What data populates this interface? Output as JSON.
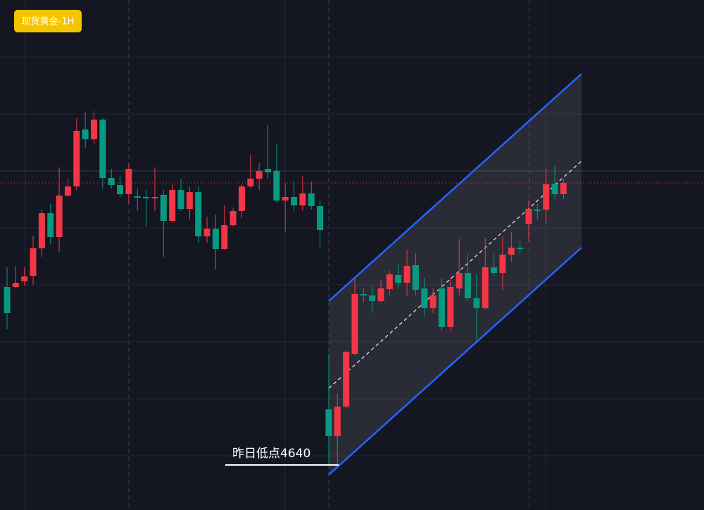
{
  "chart_data": {
    "type": "candlestick",
    "title": "现货黄金-1H",
    "annotation": "昨日低点4640",
    "up_color": "#f23645",
    "down_color": "#089981",
    "ylim": [
      4624,
      4805.25
    ],
    "open": [
      4703.25,
      4703.25,
      4705.25,
      4707.25,
      4717,
      4729.5,
      4721,
      4735.75,
      4739,
      4759.25,
      4755.75,
      4762.75,
      4742,
      4739.5,
      4736.25,
      4735.5,
      4735.25,
      4734.75,
      4736,
      4726.75,
      4737.75,
      4731,
      4737,
      4721.25,
      4724,
      4716.75,
      4725.25,
      4730.25,
      4739,
      4741.75,
      4745.25,
      4744.5,
      4734,
      4735.25,
      4732.25,
      4736.5,
      4732,
      4659.75,
      4650.25,
      4660.75,
      4679.5,
      4700.75,
      4700.25,
      4698.25,
      4702.5,
      4707.5,
      4704.75,
      4711,
      4702.75,
      4695.75,
      4702.75,
      4689,
      4702.75,
      4708.25,
      4699.25,
      4695.75,
      4710.25,
      4708.25,
      4714.75,
      4717.25,
      4725.75,
      4730.75,
      4730.75,
      4739.75,
      4736.25
    ],
    "high": [
      4710.25,
      4710.75,
      4710.25,
      4721.5,
      4730.75,
      4732.75,
      4745.75,
      4741.5,
      4763.25,
      4765.25,
      4765.75,
      4763.25,
      4745.25,
      4742.75,
      4747.25,
      4738.25,
      4737.75,
      4745.75,
      4737.75,
      4739.75,
      4741.5,
      4739,
      4739,
      4728.25,
      4729,
      4732.25,
      4731.5,
      4739.75,
      4750.25,
      4747.25,
      4760.75,
      4754,
      4740.25,
      4740.75,
      4742.75,
      4740.75,
      4734,
      4679.5,
      4665.25,
      4680.75,
      4706.25,
      4702.75,
      4704,
      4705.75,
      4709,
      4711.5,
      4716.5,
      4715.25,
      4706.5,
      4702.75,
      4706.5,
      4706.5,
      4720.25,
      4715.25,
      4707.75,
      4720.75,
      4715.25,
      4721.25,
      4722.75,
      4719.75,
      4734,
      4732.75,
      4745.25,
      4746.25,
      4741.5
    ],
    "low": [
      4688.25,
      4702.75,
      4703.75,
      4704,
      4714,
      4718.5,
      4715.75,
      4735.25,
      4737.75,
      4752.75,
      4754,
      4738.25,
      4738.25,
      4735.25,
      4732.75,
      4730.25,
      4724.75,
      4730.25,
      4714,
      4726,
      4730.25,
      4727.25,
      4719,
      4719,
      4709.5,
      4716.5,
      4724.75,
      4727.75,
      4738.25,
      4737.75,
      4741.75,
      4733.25,
      4722.75,
      4730.25,
      4730.25,
      4730.75,
      4717,
      4639.75,
      4639.75,
      4660.25,
      4679,
      4697.75,
      4694,
      4697.75,
      4700.25,
      4702.75,
      4700.25,
      4700.25,
      4692.75,
      4694,
      4687.75,
      4687.75,
      4700.25,
      4698.25,
      4684,
      4695.25,
      4707.25,
      4702.25,
      4712.25,
      4715.25,
      4719.5,
      4727.25,
      4725.75,
      4734.5,
      4734.5
    ],
    "close": [
      4694,
      4704.75,
      4707,
      4717,
      4729.5,
      4721,
      4735.75,
      4739,
      4758.75,
      4755.75,
      4762.75,
      4742,
      4739.5,
      4736.25,
      4745.25,
      4735,
      4734.75,
      4735.25,
      4726.75,
      4737.75,
      4731,
      4737,
      4721.25,
      4724,
      4716.75,
      4725.25,
      4730.25,
      4739,
      4741.75,
      4744.5,
      4744,
      4734,
      4735.25,
      4732.25,
      4736.5,
      4732,
      4723.5,
      4650.25,
      4660.75,
      4680.25,
      4700.75,
      4700.25,
      4698.25,
      4702.75,
      4707.75,
      4704.75,
      4710.75,
      4702.25,
      4695.75,
      4700.25,
      4689,
      4703.25,
      4708.25,
      4699.25,
      4695.75,
      4710.25,
      4708.25,
      4714.75,
      4717.25,
      4716.75,
      4731,
      4730.25,
      4739.75,
      4736.25,
      4740.25
    ]
  }
}
